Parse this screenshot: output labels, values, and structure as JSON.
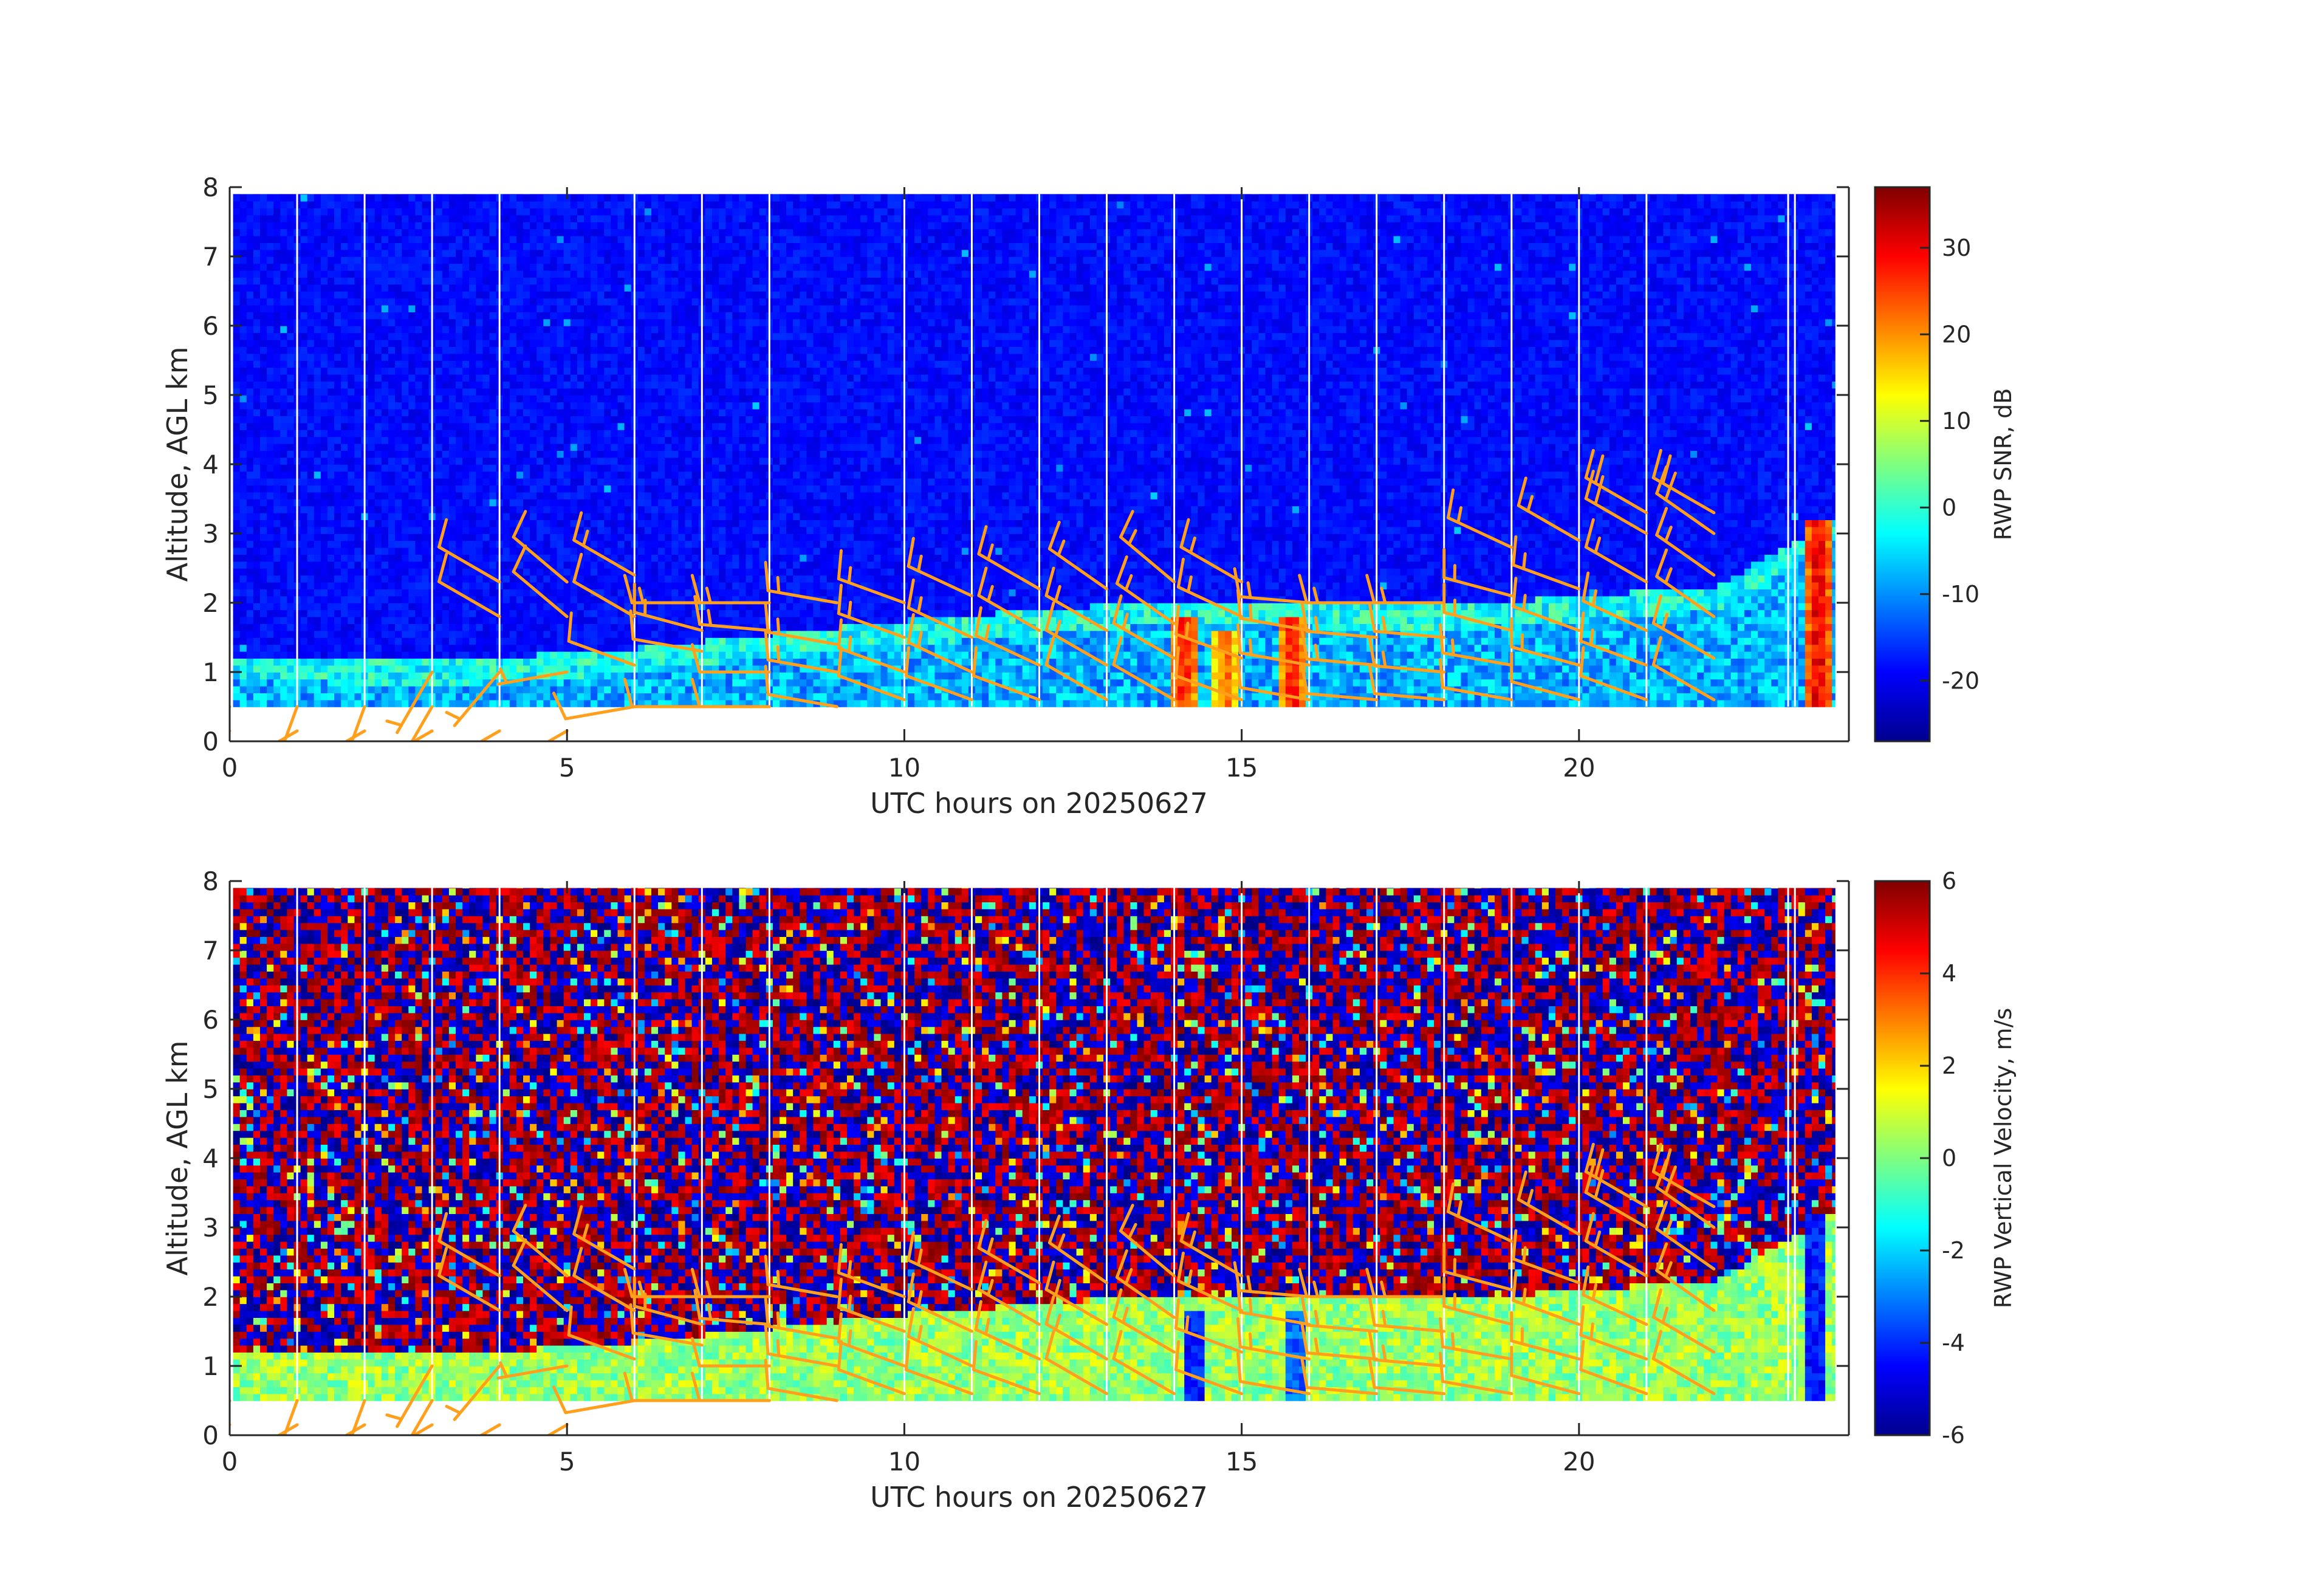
{
  "chart_data": [
    {
      "type": "heatmap",
      "title": "",
      "xlabel": "UTC hours on 20250627",
      "ylabel": "Altitude, AGL km",
      "xlim": [
        0,
        24
      ],
      "ylim": [
        0,
        8
      ],
      "xticks": [
        0,
        5,
        10,
        15,
        20
      ],
      "yticks": [
        0,
        1,
        2,
        3,
        4,
        5,
        6,
        7,
        8
      ],
      "data_extent": {
        "x": [
          0.05,
          23.8
        ],
        "y": [
          0.5,
          7.9
        ]
      },
      "colorbar": {
        "label": "RWP SNR, dB",
        "range": [
          -27,
          37
        ],
        "ticks": [
          -20,
          -10,
          0,
          10,
          20,
          30
        ],
        "colormap": "jet"
      },
      "features": {
        "background_level_db": -20,
        "boundary_layer_top_km": [
          {
            "x": 0,
            "top": 1.2
          },
          {
            "x": 3,
            "top": 1.1
          },
          {
            "x": 6,
            "top": 1.3
          },
          {
            "x": 8,
            "top": 1.5
          },
          {
            "x": 10,
            "top": 1.7
          },
          {
            "x": 14,
            "top": 2.0
          },
          {
            "x": 18,
            "top": 1.9
          },
          {
            "x": 22,
            "top": 2.2
          },
          {
            "x": 23.8,
            "top": 3.2
          }
        ],
        "strong_echo_columns": [
          {
            "x": 14.1,
            "y_top": 1.8,
            "peak_db": 33
          },
          {
            "x": 14.7,
            "y_top": 1.6,
            "peak_db": 28
          },
          {
            "x": 15.7,
            "y_top": 1.8,
            "peak_db": 33
          },
          {
            "x": 23.5,
            "y_top": 3.2,
            "peak_db": 36
          }
        ]
      },
      "data_gaps_hours": [
        1,
        2,
        3,
        4,
        6,
        7,
        8,
        10,
        11,
        12,
        13,
        14,
        15,
        16,
        17,
        18,
        19,
        20,
        21,
        23.1,
        23.2
      ]
    },
    {
      "type": "heatmap",
      "title": "",
      "xlabel": "UTC hours on 20250627",
      "ylabel": "Altitude, AGL km",
      "xlim": [
        0,
        24
      ],
      "ylim": [
        0,
        8
      ],
      "xticks": [
        0,
        5,
        10,
        15,
        20
      ],
      "yticks": [
        0,
        1,
        2,
        3,
        4,
        5,
        6,
        7,
        8
      ],
      "data_extent": {
        "x": [
          0.05,
          23.8
        ],
        "y": [
          0.5,
          7.9
        ]
      },
      "colorbar": {
        "label": "RWP Vertical Velocity, m/s",
        "range": [
          -6,
          6
        ],
        "ticks": [
          -6,
          -4,
          -2,
          0,
          2,
          4,
          6
        ],
        "colormap": "jet"
      },
      "features": {
        "boundary_layer_velocity_ms": 0.3,
        "above_layer": "noise alternating near -6 and +6",
        "downdraft_columns": [
          {
            "x": 14.2,
            "y_top": 1.8,
            "value": -5
          },
          {
            "x": 15.7,
            "y_top": 1.8,
            "value": -4
          },
          {
            "x": 23.5,
            "y_top": 3.2,
            "value": -5
          }
        ]
      },
      "data_gaps_hours": [
        1,
        2,
        3,
        4,
        6,
        7,
        8,
        10,
        11,
        12,
        13,
        14,
        15,
        16,
        17,
        18,
        19,
        20,
        21,
        23.1,
        23.2
      ]
    }
  ],
  "wind_barbs": {
    "color": "#ff9f1c",
    "units": "knots",
    "profiles": [
      {
        "x": 0.0,
        "levels": [
          {
            "y": 0.15,
            "speed": 10,
            "dir": 240
          },
          {
            "y": 0.5,
            "speed": 5,
            "dir": 200
          }
        ]
      },
      {
        "x": 1.0,
        "levels": [
          {
            "y": 0.15,
            "speed": 10,
            "dir": 240
          },
          {
            "y": 0.5,
            "speed": 5,
            "dir": 200
          }
        ]
      },
      {
        "x": 2.0,
        "levels": [
          {
            "y": 0.15,
            "speed": 10,
            "dir": 240
          },
          {
            "y": 0.5,
            "speed": 5,
            "dir": 200
          }
        ]
      },
      {
        "x": 3.0,
        "levels": [
          {
            "y": 0.15,
            "speed": 10,
            "dir": 240
          },
          {
            "y": 0.5,
            "speed": 5,
            "dir": 210
          },
          {
            "y": 1.0,
            "speed": 5,
            "dir": 210
          }
        ]
      },
      {
        "x": 4.0,
        "levels": [
          {
            "y": 0.15,
            "speed": 10,
            "dir": 240
          },
          {
            "y": 1.0,
            "speed": 5,
            "dir": 220
          },
          {
            "y": 2.3,
            "speed": 10,
            "dir": 300
          },
          {
            "y": 1.8,
            "speed": 10,
            "dir": 300
          }
        ]
      },
      {
        "x": 5.0,
        "levels": [
          {
            "y": 0.15,
            "speed": 10,
            "dir": 240
          },
          {
            "y": 1.0,
            "speed": 5,
            "dir": 260
          },
          {
            "y": 2.3,
            "speed": 10,
            "dir": 310
          },
          {
            "y": 1.8,
            "speed": 10,
            "dir": 310
          }
        ]
      },
      {
        "x": 6.0,
        "levels": [
          {
            "y": 0.5,
            "speed": 10,
            "dir": 260
          },
          {
            "y": 1.1,
            "speed": 10,
            "dir": 290
          },
          {
            "y": 1.8,
            "speed": 10,
            "dir": 300
          },
          {
            "y": 2.4,
            "speed": 15,
            "dir": 300
          }
        ]
      },
      {
        "x": 7.0,
        "levels": [
          {
            "y": 0.5,
            "speed": 10,
            "dir": 270
          },
          {
            "y": 1.3,
            "speed": 10,
            "dir": 280
          },
          {
            "y": 1.6,
            "speed": 15,
            "dir": 285
          },
          {
            "y": 2.0,
            "speed": 15,
            "dir": 270
          }
        ]
      },
      {
        "x": 8.0,
        "levels": [
          {
            "y": 0.5,
            "speed": 10,
            "dir": 270
          },
          {
            "y": 1.0,
            "speed": 10,
            "dir": 270
          },
          {
            "y": 1.6,
            "speed": 15,
            "dir": 275
          },
          {
            "y": 2.0,
            "speed": 15,
            "dir": 270
          }
        ]
      },
      {
        "x": 9.0,
        "levels": [
          {
            "y": 0.5,
            "speed": 10,
            "dir": 280
          },
          {
            "y": 1.0,
            "speed": 15,
            "dir": 280
          },
          {
            "y": 1.4,
            "speed": 15,
            "dir": 280
          },
          {
            "y": 2.0,
            "speed": 15,
            "dir": 280
          }
        ]
      },
      {
        "x": 10.0,
        "levels": [
          {
            "y": 0.6,
            "speed": 10,
            "dir": 290
          },
          {
            "y": 1.0,
            "speed": 15,
            "dir": 290
          },
          {
            "y": 1.5,
            "speed": 15,
            "dir": 290
          },
          {
            "y": 2.0,
            "speed": 15,
            "dir": 290
          }
        ]
      },
      {
        "x": 11.0,
        "levels": [
          {
            "y": 0.6,
            "speed": 10,
            "dir": 290
          },
          {
            "y": 1.0,
            "speed": 15,
            "dir": 295
          },
          {
            "y": 1.5,
            "speed": 15,
            "dir": 295
          },
          {
            "y": 2.1,
            "speed": 15,
            "dir": 295
          }
        ]
      },
      {
        "x": 12.0,
        "levels": [
          {
            "y": 0.6,
            "speed": 10,
            "dir": 290
          },
          {
            "y": 1.1,
            "speed": 15,
            "dir": 295
          },
          {
            "y": 1.6,
            "speed": 15,
            "dir": 300
          },
          {
            "y": 2.2,
            "speed": 15,
            "dir": 300
          }
        ]
      },
      {
        "x": 13.0,
        "levels": [
          {
            "y": 0.6,
            "speed": 10,
            "dir": 300
          },
          {
            "y": 1.1,
            "speed": 15,
            "dir": 300
          },
          {
            "y": 1.6,
            "speed": 15,
            "dir": 300
          },
          {
            "y": 2.2,
            "speed": 15,
            "dir": 305
          }
        ]
      },
      {
        "x": 14.0,
        "levels": [
          {
            "y": 0.6,
            "speed": 10,
            "dir": 300
          },
          {
            "y": 1.2,
            "speed": 15,
            "dir": 300
          },
          {
            "y": 1.7,
            "speed": 15,
            "dir": 305
          },
          {
            "y": 2.3,
            "speed": 15,
            "dir": 310
          }
        ]
      },
      {
        "x": 15.0,
        "levels": [
          {
            "y": 0.6,
            "speed": 10,
            "dir": 290
          },
          {
            "y": 1.2,
            "speed": 15,
            "dir": 290
          },
          {
            "y": 1.8,
            "speed": 15,
            "dir": 295
          },
          {
            "y": 2.3,
            "speed": 15,
            "dir": 300
          }
        ]
      },
      {
        "x": 16.0,
        "levels": [
          {
            "y": 0.6,
            "speed": 10,
            "dir": 280
          },
          {
            "y": 1.1,
            "speed": 15,
            "dir": 280
          },
          {
            "y": 1.6,
            "speed": 15,
            "dir": 280
          },
          {
            "y": 2.0,
            "speed": 15,
            "dir": 275
          }
        ]
      },
      {
        "x": 17.0,
        "levels": [
          {
            "y": 0.6,
            "speed": 10,
            "dir": 275
          },
          {
            "y": 1.1,
            "speed": 15,
            "dir": 275
          },
          {
            "y": 1.5,
            "speed": 15,
            "dir": 275
          },
          {
            "y": 2.0,
            "speed": 15,
            "dir": 270
          }
        ]
      },
      {
        "x": 18.0,
        "levels": [
          {
            "y": 0.6,
            "speed": 10,
            "dir": 275
          },
          {
            "y": 1.0,
            "speed": 15,
            "dir": 275
          },
          {
            "y": 1.5,
            "speed": 15,
            "dir": 275
          },
          {
            "y": 2.0,
            "speed": 15,
            "dir": 270
          }
        ]
      },
      {
        "x": 19.0,
        "levels": [
          {
            "y": 0.6,
            "speed": 10,
            "dir": 280
          },
          {
            "y": 1.1,
            "speed": 15,
            "dir": 280
          },
          {
            "y": 1.6,
            "speed": 15,
            "dir": 285
          },
          {
            "y": 2.1,
            "speed": 15,
            "dir": 285
          },
          {
            "y": 2.8,
            "speed": 15,
            "dir": 295
          }
        ]
      },
      {
        "x": 20.0,
        "levels": [
          {
            "y": 0.6,
            "speed": 10,
            "dir": 285
          },
          {
            "y": 1.1,
            "speed": 15,
            "dir": 285
          },
          {
            "y": 1.6,
            "speed": 15,
            "dir": 290
          },
          {
            "y": 2.2,
            "speed": 15,
            "dir": 290
          },
          {
            "y": 2.9,
            "speed": 15,
            "dir": 300
          }
        ]
      },
      {
        "x": 21.0,
        "levels": [
          {
            "y": 0.6,
            "speed": 10,
            "dir": 290
          },
          {
            "y": 1.1,
            "speed": 15,
            "dir": 290
          },
          {
            "y": 1.6,
            "speed": 15,
            "dir": 295
          },
          {
            "y": 2.3,
            "speed": 15,
            "dir": 300
          },
          {
            "y": 3.0,
            "speed": 20,
            "dir": 300
          },
          {
            "y": 3.3,
            "speed": 20,
            "dir": 300
          }
        ]
      },
      {
        "x": 22.0,
        "levels": [
          {
            "y": 0.6,
            "speed": 10,
            "dir": 300
          },
          {
            "y": 1.2,
            "speed": 15,
            "dir": 300
          },
          {
            "y": 1.8,
            "speed": 15,
            "dir": 305
          },
          {
            "y": 2.4,
            "speed": 15,
            "dir": 305
          },
          {
            "y": 3.0,
            "speed": 20,
            "dir": 305
          },
          {
            "y": 3.3,
            "speed": 20,
            "dir": 300
          }
        ]
      }
    ]
  }
}
